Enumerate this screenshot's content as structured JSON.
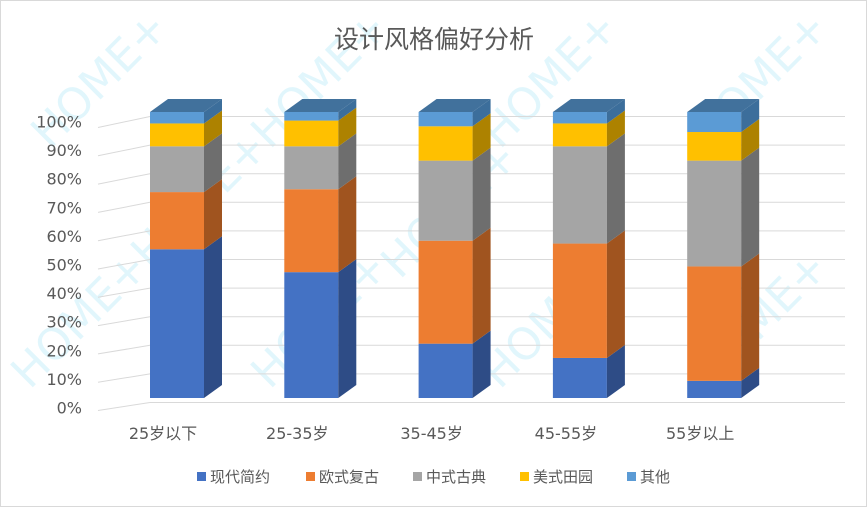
{
  "chart_data": {
    "type": "bar",
    "stacked": "percent",
    "three_d": true,
    "title": "设计风格偏好分析",
    "categories": [
      "25岁以下",
      "25-35岁",
      "35-45岁",
      "45-55岁",
      "55岁以上"
    ],
    "series": [
      {
        "name": "现代简约",
        "values": [
          52,
          44,
          19,
          14,
          6
        ],
        "color": "#4472C4",
        "side": "#2E4C86",
        "top": "#3A63AC"
      },
      {
        "name": "欧式复古",
        "values": [
          20,
          29,
          36,
          40,
          40
        ],
        "color": "#ED7D31",
        "side": "#A0541F",
        "top": "#D06D2A"
      },
      {
        "name": "中式古典",
        "values": [
          16,
          15,
          28,
          34,
          37
        ],
        "color": "#A5A5A5",
        "side": "#6E6E6E",
        "top": "#909090"
      },
      {
        "name": "美式田园",
        "values": [
          8,
          9,
          12,
          8,
          10
        ],
        "color": "#FFC000",
        "side": "#AD8200",
        "top": "#E0A800"
      },
      {
        "name": "其他",
        "values": [
          4,
          3,
          5,
          4,
          7
        ],
        "color": "#5B9BD5",
        "side": "#3C6E9B",
        "top": "#41719C"
      }
    ],
    "yticks": [
      "0%",
      "10%",
      "20%",
      "30%",
      "40%",
      "50%",
      "60%",
      "70%",
      "80%",
      "90%",
      "100%"
    ],
    "ylim": [
      0,
      100
    ],
    "grid": true,
    "legend": "bottom"
  },
  "watermark": "HOME+"
}
